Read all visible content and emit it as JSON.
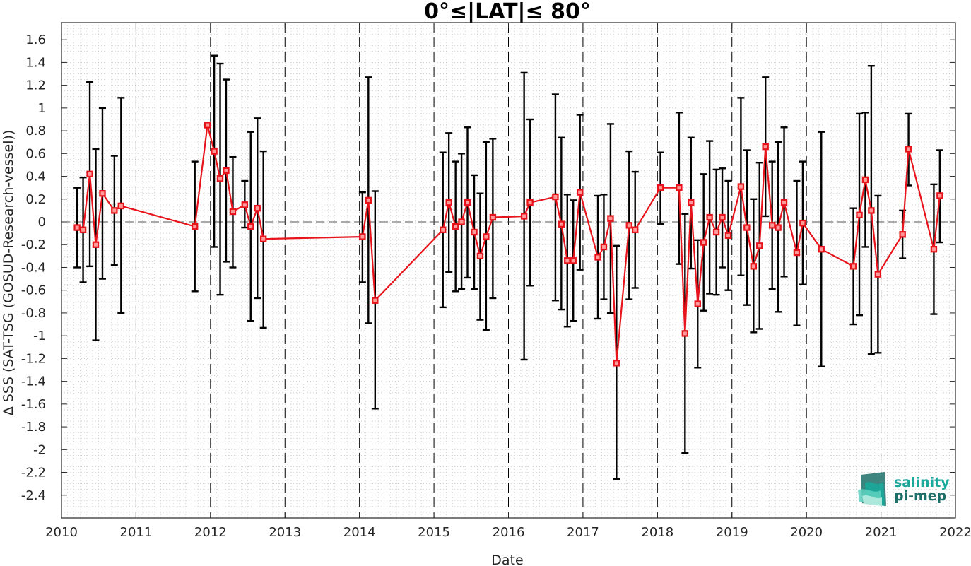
{
  "chart_data": {
    "type": "line",
    "title": "0°≤|LAT|≤ 80°",
    "xlabel": "Date",
    "ylabel": "Δ SSS (SAT-TSG (GOSUD-Research-vessel))",
    "xlim": [
      2010,
      2022
    ],
    "ylim": [
      -2.6,
      1.75
    ],
    "x_ticks": [
      "2010",
      "2011",
      "2012",
      "2013",
      "2014",
      "2015",
      "2016",
      "2017",
      "2018",
      "2019",
      "2020",
      "2021",
      "2022"
    ],
    "y_ticks": [
      "1.6",
      "1.4",
      "1.2",
      "1",
      "0.8",
      "0.6",
      "0.4",
      "0.2",
      "0",
      "-0.2",
      "-0.4",
      "-0.6",
      "-0.8",
      "-1",
      "-1.2",
      "-1.4",
      "-1.6",
      "-1.8",
      "-2",
      "-2.2",
      "-2.4"
    ],
    "year_lines": [
      2011,
      2012,
      2013,
      2014,
      2015,
      2016,
      2017,
      2018,
      2019,
      2020,
      2021
    ],
    "grid": "minor dotted",
    "series": [
      {
        "color": "#e8141c",
        "errorbar_color": "#000000",
        "points": [
          {
            "x": 2010.21,
            "y": -0.05,
            "lo": -0.4,
            "hi": 0.3
          },
          {
            "x": 2010.29,
            "y": -0.07,
            "lo": -0.53,
            "hi": 0.39
          },
          {
            "x": 2010.38,
            "y": 0.42,
            "lo": -0.39,
            "hi": 1.23
          },
          {
            "x": 2010.46,
            "y": -0.2,
            "lo": -1.04,
            "hi": 0.64
          },
          {
            "x": 2010.55,
            "y": 0.25,
            "lo": -0.5,
            "hi": 1.0
          },
          {
            "x": 2010.71,
            "y": 0.1,
            "lo": -0.38,
            "hi": 0.58
          },
          {
            "x": 2010.8,
            "y": 0.14,
            "lo": -0.8,
            "hi": 1.09
          },
          {
            "x": 2011.79,
            "y": -0.04,
            "lo": -0.61,
            "hi": 0.53
          },
          {
            "x": 2011.96,
            "y": 0.85,
            "lo": 0.83,
            "hi": 0.87
          },
          {
            "x": 2012.05,
            "y": 0.62,
            "lo": -0.22,
            "hi": 1.46
          },
          {
            "x": 2012.13,
            "y": 0.38,
            "lo": -0.64,
            "hi": 1.39
          },
          {
            "x": 2012.21,
            "y": 0.45,
            "lo": -0.35,
            "hi": 1.25
          },
          {
            "x": 2012.3,
            "y": 0.09,
            "lo": -0.4,
            "hi": 0.57
          },
          {
            "x": 2012.46,
            "y": 0.15,
            "lo": -0.05,
            "hi": 0.36
          },
          {
            "x": 2012.54,
            "y": -0.04,
            "lo": -0.87,
            "hi": 0.79
          },
          {
            "x": 2012.63,
            "y": 0.12,
            "lo": -0.67,
            "hi": 0.91
          },
          {
            "x": 2012.71,
            "y": -0.15,
            "lo": -0.93,
            "hi": 0.62
          },
          {
            "x": 2014.04,
            "y": -0.13,
            "lo": -0.53,
            "hi": 0.26
          },
          {
            "x": 2014.12,
            "y": 0.19,
            "lo": -0.89,
            "hi": 1.27
          },
          {
            "x": 2014.21,
            "y": -0.69,
            "lo": -1.64,
            "hi": 0.27
          },
          {
            "x": 2015.12,
            "y": -0.07,
            "lo": -0.75,
            "hi": 0.61
          },
          {
            "x": 2015.2,
            "y": 0.17,
            "lo": -0.44,
            "hi": 0.78
          },
          {
            "x": 2015.29,
            "y": -0.04,
            "lo": -0.61,
            "hi": 0.53
          },
          {
            "x": 2015.37,
            "y": 0.0,
            "lo": -0.59,
            "hi": 0.6
          },
          {
            "x": 2015.45,
            "y": 0.17,
            "lo": -0.49,
            "hi": 0.83
          },
          {
            "x": 2015.54,
            "y": -0.09,
            "lo": -0.59,
            "hi": 0.41
          },
          {
            "x": 2015.62,
            "y": -0.3,
            "lo": -0.86,
            "hi": 0.25
          },
          {
            "x": 2015.7,
            "y": -0.13,
            "lo": -0.95,
            "hi": 0.7
          },
          {
            "x": 2015.79,
            "y": 0.04,
            "lo": -0.67,
            "hi": 0.73
          },
          {
            "x": 2016.21,
            "y": 0.05,
            "lo": -1.21,
            "hi": 1.31
          },
          {
            "x": 2016.29,
            "y": 0.17,
            "lo": -0.56,
            "hi": 0.9
          },
          {
            "x": 2016.63,
            "y": 0.22,
            "lo": -0.69,
            "hi": 1.12
          },
          {
            "x": 2016.71,
            "y": -0.02,
            "lo": -0.77,
            "hi": 0.74
          },
          {
            "x": 2016.79,
            "y": -0.34,
            "lo": -0.92,
            "hi": 0.24
          },
          {
            "x": 2016.87,
            "y": -0.34,
            "lo": -0.87,
            "hi": 0.19
          },
          {
            "x": 2016.96,
            "y": 0.26,
            "lo": -0.42,
            "hi": 0.94
          },
          {
            "x": 2017.2,
            "y": -0.31,
            "lo": -0.85,
            "hi": 0.23
          },
          {
            "x": 2017.28,
            "y": -0.22,
            "lo": -0.68,
            "hi": 0.24
          },
          {
            "x": 2017.37,
            "y": 0.03,
            "lo": -0.8,
            "hi": 0.86
          },
          {
            "x": 2017.45,
            "y": -1.24,
            "lo": -2.26,
            "hi": -0.21
          },
          {
            "x": 2017.62,
            "y": -0.03,
            "lo": -0.68,
            "hi": 0.62
          },
          {
            "x": 2017.7,
            "y": -0.07,
            "lo": -0.58,
            "hi": 0.44
          },
          {
            "x": 2018.04,
            "y": 0.3,
            "lo": -0.02,
            "hi": 0.61
          },
          {
            "x": 2018.29,
            "y": 0.3,
            "lo": -0.37,
            "hi": 0.96
          },
          {
            "x": 2018.37,
            "y": -0.98,
            "lo": -2.03,
            "hi": 0.07
          },
          {
            "x": 2018.45,
            "y": 0.17,
            "lo": -0.41,
            "hi": 0.74
          },
          {
            "x": 2018.54,
            "y": -0.72,
            "lo": -1.28,
            "hi": -0.16
          },
          {
            "x": 2018.62,
            "y": -0.18,
            "lo": -0.78,
            "hi": 0.42
          },
          {
            "x": 2018.7,
            "y": 0.04,
            "lo": -0.63,
            "hi": 0.71
          },
          {
            "x": 2018.79,
            "y": -0.09,
            "lo": -0.64,
            "hi": 0.46
          },
          {
            "x": 2018.87,
            "y": 0.04,
            "lo": -0.4,
            "hi": 0.47
          },
          {
            "x": 2018.95,
            "y": -0.12,
            "lo": -0.6,
            "hi": 0.36
          },
          {
            "x": 2019.12,
            "y": 0.31,
            "lo": -0.47,
            "hi": 1.09
          },
          {
            "x": 2019.2,
            "y": -0.05,
            "lo": -0.73,
            "hi": 0.63
          },
          {
            "x": 2019.29,
            "y": -0.39,
            "lo": -0.97,
            "hi": 0.2
          },
          {
            "x": 2019.37,
            "y": -0.21,
            "lo": -0.94,
            "hi": 0.52
          },
          {
            "x": 2019.45,
            "y": 0.66,
            "lo": 0.05,
            "hi": 1.27
          },
          {
            "x": 2019.54,
            "y": -0.03,
            "lo": -0.59,
            "hi": 0.53
          },
          {
            "x": 2019.62,
            "y": -0.05,
            "lo": -0.79,
            "hi": 0.7
          },
          {
            "x": 2019.7,
            "y": 0.17,
            "lo": -0.48,
            "hi": 0.83
          },
          {
            "x": 2019.87,
            "y": -0.27,
            "lo": -0.91,
            "hi": 0.36
          },
          {
            "x": 2019.95,
            "y": -0.01,
            "lo": -0.55,
            "hi": 0.53
          },
          {
            "x": 2020.2,
            "y": -0.24,
            "lo": -1.27,
            "hi": 0.79
          },
          {
            "x": 2020.63,
            "y": -0.39,
            "lo": -0.9,
            "hi": 0.12
          },
          {
            "x": 2020.71,
            "y": 0.06,
            "lo": -0.82,
            "hi": 0.95
          },
          {
            "x": 2020.79,
            "y": 0.37,
            "lo": -0.22,
            "hi": 0.96
          },
          {
            "x": 2020.87,
            "y": 0.1,
            "lo": -1.16,
            "hi": 1.37
          },
          {
            "x": 2020.96,
            "y": -0.46,
            "lo": -1.15,
            "hi": 0.23
          },
          {
            "x": 2021.29,
            "y": -0.11,
            "lo": -0.32,
            "hi": 0.1
          },
          {
            "x": 2021.37,
            "y": 0.64,
            "lo": 0.32,
            "hi": 0.95
          },
          {
            "x": 2021.71,
            "y": -0.24,
            "lo": -0.81,
            "hi": 0.33
          },
          {
            "x": 2021.79,
            "y": 0.23,
            "lo": -0.18,
            "hi": 0.63
          }
        ]
      }
    ]
  },
  "logo": {
    "line1": "salinity",
    "line2": "pi-mep",
    "color_top": "#1aa99a",
    "color_bottom": "#1c6e68"
  }
}
